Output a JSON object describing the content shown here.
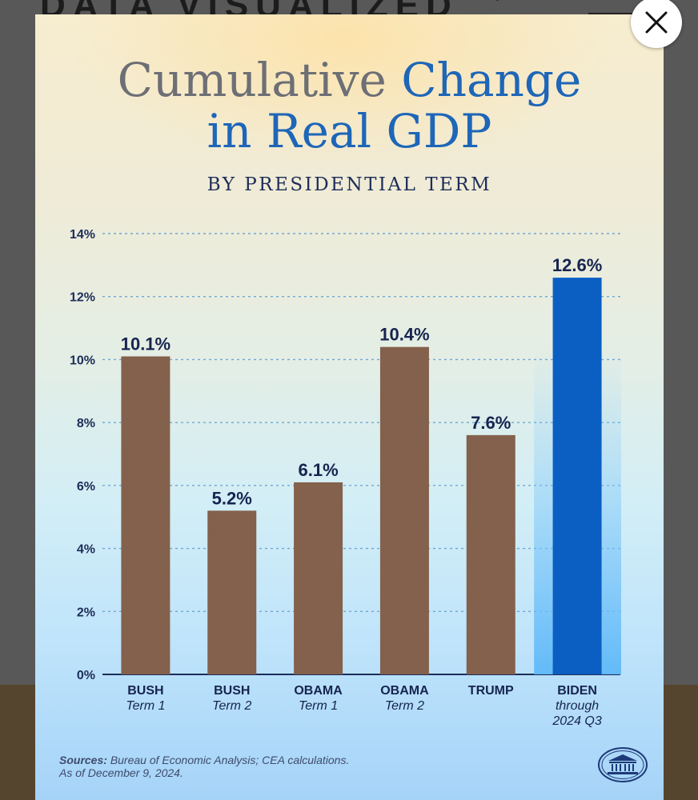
{
  "background_page": {
    "heading": "DATA VISUALIZED"
  },
  "close_button": {
    "icon": "close-icon",
    "label": "Close"
  },
  "infographic": {
    "title_line1_grey": "Cumulative",
    "title_line1_blue": "Change",
    "title_line2": "in Real GDP",
    "subtitle": "BY PRESIDENTIAL TERM",
    "sources_label": "Sources:",
    "sources_text": "Bureau of Economic Analysis; CEA calculations.",
    "as_of": "As of December 9, 2024.",
    "seal_icon": "white-house-seal-icon"
  },
  "colors": {
    "bar_default": "#83614c",
    "bar_highlight": "#0b5fc3",
    "title_blue": "#1e66b8",
    "title_grey": "#6d6f75",
    "text_navy": "#16244f"
  },
  "chart_data": {
    "type": "bar",
    "title": "Cumulative Change in Real GDP",
    "subtitle": "BY PRESIDENTIAL TERM",
    "xlabel": "",
    "ylabel": "",
    "ylim": [
      0,
      14
    ],
    "yticks": [
      0,
      2,
      4,
      6,
      8,
      10,
      12,
      14
    ],
    "ytick_labels": [
      "0%",
      "2%",
      "4%",
      "6%",
      "8%",
      "10%",
      "12%",
      "14%"
    ],
    "grid": true,
    "categories": [
      {
        "name": "BUSH",
        "sub": [
          "Term 1"
        ]
      },
      {
        "name": "BUSH",
        "sub": [
          "Term 2"
        ]
      },
      {
        "name": "OBAMA",
        "sub": [
          "Term 1"
        ]
      },
      {
        "name": "OBAMA",
        "sub": [
          "Term 2"
        ]
      },
      {
        "name": "TRUMP",
        "sub": []
      },
      {
        "name": "BIDEN",
        "sub": [
          "through",
          "2024 Q3"
        ]
      }
    ],
    "values": [
      10.1,
      5.2,
      6.1,
      10.4,
      7.6,
      12.6
    ],
    "value_labels": [
      "10.1%",
      "5.2%",
      "6.1%",
      "10.4%",
      "7.6%",
      "12.6%"
    ],
    "highlight_index": 5,
    "units": "%"
  }
}
